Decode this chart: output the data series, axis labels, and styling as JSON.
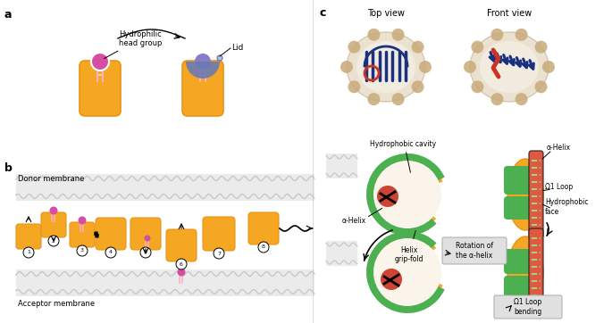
{
  "bg_color": "#ffffff",
  "panel_a_label": "a",
  "panel_b_label": "b",
  "panel_c_label": "c",
  "protein_color": "#F5A623",
  "protein_dark": "#E8951A",
  "lipid_head_color": "#D44FA3",
  "lipid_head_color2": "#8B7BC8",
  "lid_color": "#6B7AB5",
  "membrane_color": "#E0E0E0",
  "label_hydrophilic": "Hydrophilic\nhead group",
  "label_lid": "Lid",
  "label_donor": "Donor membrane",
  "label_acceptor": "Acceptor membrane",
  "label_top_view": "Top view",
  "label_front_view": "Front view",
  "label_hydrophobic_cavity": "Hydrophobic cavity",
  "label_alpha_helix1": "α-Helix",
  "label_alpha_helix2": "α-Helix",
  "label_helix_grip": "Helix\ngrip-fold",
  "label_hydrophobic_face": "Hydrophobic\nface",
  "label_omega1_loop": "Ω1 Loop",
  "label_rotation": "Rotation of\nthe α-helix",
  "label_omega1_bending": "Ω1 Loop\nbending",
  "green_color": "#4CAF50",
  "red_helix_color": "#E05840",
  "cavity_color": "#CC4433",
  "annotation_box_color": "#E0E0E0"
}
